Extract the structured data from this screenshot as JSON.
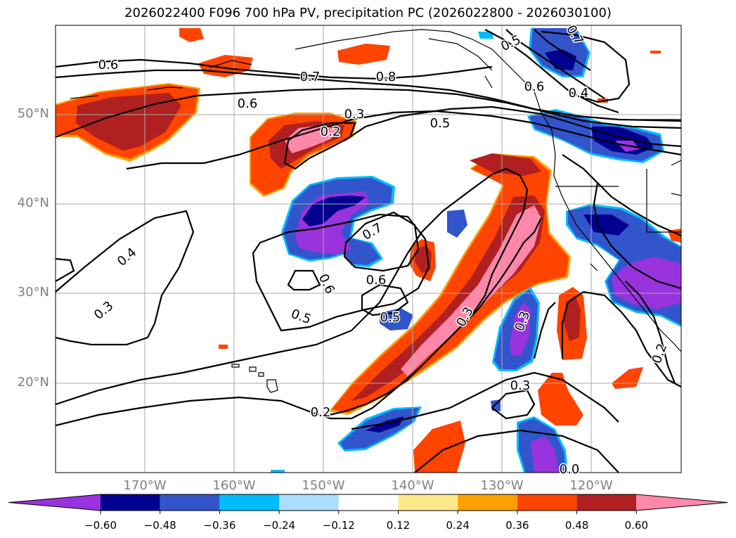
{
  "title": "2026022400 F096 700 hPa PV, precipitation PC (2026022800 - 2026030100)",
  "lon_labels": [
    "170°W",
    "160°W",
    "150°W",
    "140°W",
    "130°W",
    "120°W"
  ],
  "lat_labels": [
    "50°N",
    "40°N",
    "30°N",
    "20°N"
  ],
  "contour_labels": [
    "0.6",
    "0.7",
    "0.8",
    "0.5",
    "0.6",
    "0.4",
    "0.6",
    "0.3",
    "0.2",
    "0.5",
    "0.7",
    "0.4",
    "0.6",
    "0.6",
    "0.5",
    "0.5",
    "0.3",
    "0.3",
    "0.3",
    "0.2",
    "0.3",
    "0.2",
    "0.7",
    "0.0"
  ],
  "colorbar": {
    "ticks": [
      "−0.60",
      "−0.48",
      "−0.36",
      "−0.24",
      "−0.12",
      "0.12",
      "0.24",
      "0.36",
      "0.48",
      "0.60"
    ],
    "colors": [
      "#9933dd",
      "#000090",
      "#3355cc",
      "#00bbff",
      "#aaddff",
      "#ffffff",
      "#ffe88a",
      "#ffa000",
      "#ff4400",
      "#b02020",
      "#ff88aa"
    ]
  },
  "map": {
    "lon_range": [
      -180,
      -110
    ],
    "lat_range": [
      10,
      60
    ],
    "field_colors": {
      "pink": "#ff88aa",
      "darkred": "#b02020",
      "orange": "#ff4400",
      "amber": "#ffa000",
      "yellow": "#ffe88a",
      "purple": "#9933dd",
      "navy": "#000090",
      "blue": "#3355cc",
      "cyan": "#00bbff",
      "lightblue": "#aaddff"
    }
  }
}
